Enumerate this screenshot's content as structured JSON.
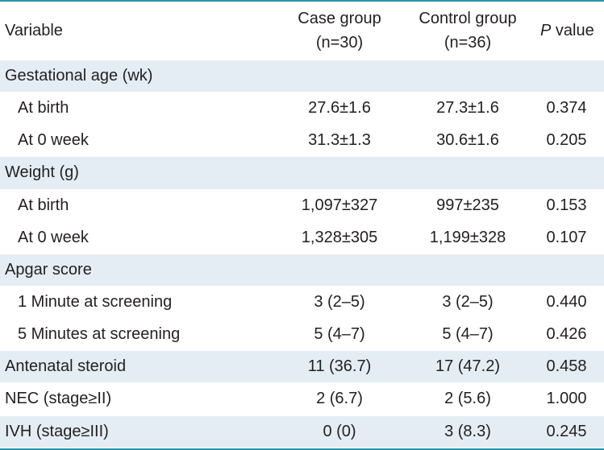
{
  "colors": {
    "rule": "#2596ad",
    "shade": "#e5edf4",
    "text": "#231f20"
  },
  "table": {
    "header": {
      "variable": "Variable",
      "case_group": "Case group",
      "case_n": "(n=30)",
      "control_group": "Control group",
      "control_n": "(n=36)",
      "p_symbol": "P",
      "p_value": "value"
    },
    "rows": [
      {
        "variable": "Gestational age (wk)"
      },
      {
        "variable": "At birth",
        "case": "27.6±1.6",
        "control": "27.3±1.6",
        "p": "0.374"
      },
      {
        "variable": "At 0 week",
        "case": "31.3±1.3",
        "control": "30.6±1.6",
        "p": "0.205"
      },
      {
        "variable": "Weight (g)"
      },
      {
        "variable": "At birth",
        "case": "1,097±327",
        "control": "997±235",
        "p": "0.153"
      },
      {
        "variable": "At 0 week",
        "case": "1,328±305",
        "control": "1,199±328",
        "p": "0.107"
      },
      {
        "variable": "Apgar score"
      },
      {
        "variable": "1 Minute at screening",
        "case": "3 (2–5)",
        "control": "3 (2–5)",
        "p": "0.440"
      },
      {
        "variable": "5 Minutes at screening",
        "case": "5 (4–7)",
        "control": "5 (4–7)",
        "p": "0.426"
      },
      {
        "variable": "Antenatal steroid",
        "case": "11 (36.7)",
        "control": "17 (47.2)",
        "p": "0.458"
      },
      {
        "variable": "NEC (stage≥II)",
        "case": "2 (6.7)",
        "control": "2 (5.6)",
        "p": "1.000"
      },
      {
        "variable": "IVH (stage≥III)",
        "case": "0 (0)",
        "control": "3 (8.3)",
        "p": "0.245"
      }
    ]
  }
}
